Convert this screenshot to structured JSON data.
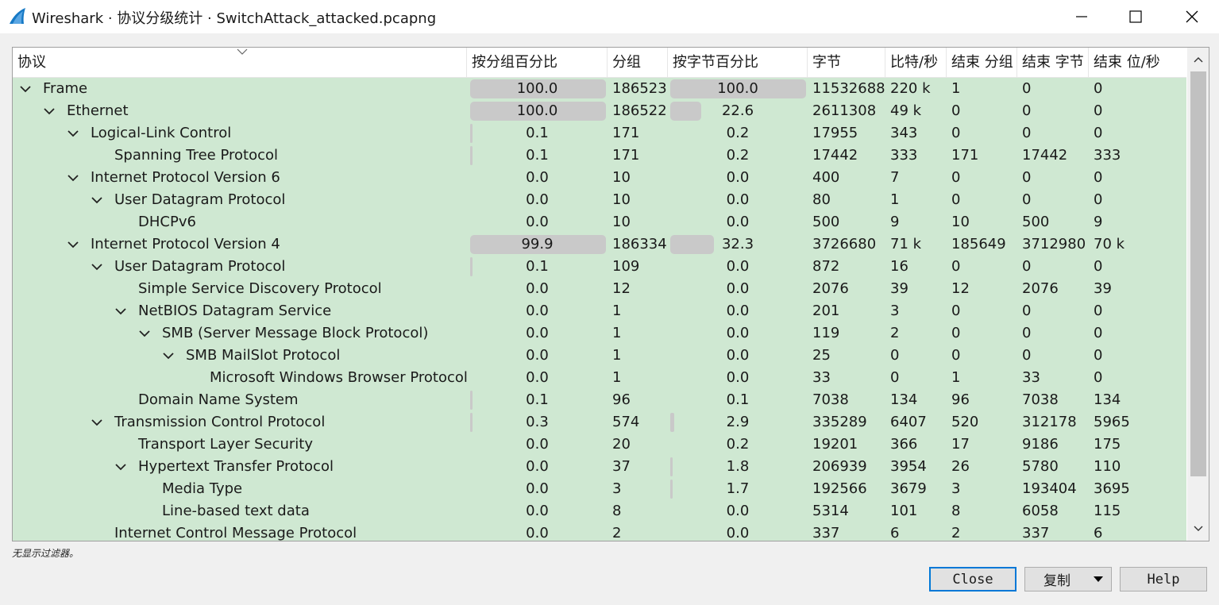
{
  "window": {
    "title": "Wireshark · 协议分级统计 · SwitchAttack_attacked.pcapng",
    "icon": "wireshark-fin-icon",
    "controls": [
      "minimize-icon",
      "maximize-icon",
      "close-icon"
    ]
  },
  "columns": [
    "协议",
    "按分组百分比",
    "分组",
    "按字节百分比",
    "字节",
    "比特/秒",
    "结束 分组",
    "结束 字节",
    "结束 位/秒"
  ],
  "rows": [
    {
      "protocol": "Frame",
      "level": 0,
      "expanded": true,
      "pkt_pct": "100.0",
      "packets": "186523",
      "byte_pct": "100.0",
      "bytes": "11532688",
      "bps": "220 k",
      "end_pkts": "1",
      "end_bytes": "0",
      "end_bps": "0",
      "pkt_fill": 1.0,
      "byte_fill": 1.0
    },
    {
      "protocol": "Ethernet",
      "level": 1,
      "expanded": true,
      "pkt_pct": "100.0",
      "packets": "186522",
      "byte_pct": "22.6",
      "bytes": "2611308",
      "bps": "49 k",
      "end_pkts": "0",
      "end_bytes": "0",
      "end_bps": "0",
      "pkt_fill": 1.0,
      "byte_fill": 0.226
    },
    {
      "protocol": "Logical-Link Control",
      "level": 2,
      "expanded": true,
      "pkt_pct": "0.1",
      "packets": "171",
      "byte_pct": "0.2",
      "bytes": "17955",
      "bps": "343",
      "end_pkts": "0",
      "end_bytes": "0",
      "end_bps": "0",
      "pkt_fill": 0.001,
      "byte_fill": 0.002
    },
    {
      "protocol": "Spanning Tree Protocol",
      "level": 3,
      "expanded": false,
      "pkt_pct": "0.1",
      "packets": "171",
      "byte_pct": "0.2",
      "bytes": "17442",
      "bps": "333",
      "end_pkts": "171",
      "end_bytes": "17442",
      "end_bps": "333",
      "pkt_fill": 0.001,
      "byte_fill": 0.002
    },
    {
      "protocol": "Internet Protocol Version 6",
      "level": 2,
      "expanded": true,
      "pkt_pct": "0.0",
      "packets": "10",
      "byte_pct": "0.0",
      "bytes": "400",
      "bps": "7",
      "end_pkts": "0",
      "end_bytes": "0",
      "end_bps": "0",
      "pkt_fill": 0,
      "byte_fill": 0
    },
    {
      "protocol": "User Datagram Protocol",
      "level": 3,
      "expanded": true,
      "pkt_pct": "0.0",
      "packets": "10",
      "byte_pct": "0.0",
      "bytes": "80",
      "bps": "1",
      "end_pkts": "0",
      "end_bytes": "0",
      "end_bps": "0",
      "pkt_fill": 0,
      "byte_fill": 0
    },
    {
      "protocol": "DHCPv6",
      "level": 4,
      "expanded": false,
      "pkt_pct": "0.0",
      "packets": "10",
      "byte_pct": "0.0",
      "bytes": "500",
      "bps": "9",
      "end_pkts": "10",
      "end_bytes": "500",
      "end_bps": "9",
      "pkt_fill": 0,
      "byte_fill": 0
    },
    {
      "protocol": "Internet Protocol Version 4",
      "level": 2,
      "expanded": true,
      "pkt_pct": "99.9",
      "packets": "186334",
      "byte_pct": "32.3",
      "bytes": "3726680",
      "bps": "71 k",
      "end_pkts": "185649",
      "end_bytes": "3712980",
      "end_bps": "70 k",
      "pkt_fill": 0.999,
      "byte_fill": 0.323
    },
    {
      "protocol": "User Datagram Protocol",
      "level": 3,
      "expanded": true,
      "pkt_pct": "0.1",
      "packets": "109",
      "byte_pct": "0.0",
      "bytes": "872",
      "bps": "16",
      "end_pkts": "0",
      "end_bytes": "0",
      "end_bps": "0",
      "pkt_fill": 0.001,
      "byte_fill": 0
    },
    {
      "protocol": "Simple Service Discovery Protocol",
      "level": 4,
      "expanded": false,
      "pkt_pct": "0.0",
      "packets": "12",
      "byte_pct": "0.0",
      "bytes": "2076",
      "bps": "39",
      "end_pkts": "12",
      "end_bytes": "2076",
      "end_bps": "39",
      "pkt_fill": 0,
      "byte_fill": 0
    },
    {
      "protocol": "NetBIOS Datagram Service",
      "level": 4,
      "expanded": true,
      "pkt_pct": "0.0",
      "packets": "1",
      "byte_pct": "0.0",
      "bytes": "201",
      "bps": "3",
      "end_pkts": "0",
      "end_bytes": "0",
      "end_bps": "0",
      "pkt_fill": 0,
      "byte_fill": 0
    },
    {
      "protocol": "SMB (Server Message Block Protocol)",
      "level": 5,
      "expanded": true,
      "pkt_pct": "0.0",
      "packets": "1",
      "byte_pct": "0.0",
      "bytes": "119",
      "bps": "2",
      "end_pkts": "0",
      "end_bytes": "0",
      "end_bps": "0",
      "pkt_fill": 0,
      "byte_fill": 0
    },
    {
      "protocol": "SMB MailSlot Protocol",
      "level": 6,
      "expanded": true,
      "pkt_pct": "0.0",
      "packets": "1",
      "byte_pct": "0.0",
      "bytes": "25",
      "bps": "0",
      "end_pkts": "0",
      "end_bytes": "0",
      "end_bps": "0",
      "pkt_fill": 0,
      "byte_fill": 0
    },
    {
      "protocol": "Microsoft Windows Browser Protocol",
      "level": 7,
      "expanded": false,
      "pkt_pct": "0.0",
      "packets": "1",
      "byte_pct": "0.0",
      "bytes": "33",
      "bps": "0",
      "end_pkts": "1",
      "end_bytes": "33",
      "end_bps": "0",
      "pkt_fill": 0,
      "byte_fill": 0
    },
    {
      "protocol": "Domain Name System",
      "level": 4,
      "expanded": false,
      "pkt_pct": "0.1",
      "packets": "96",
      "byte_pct": "0.1",
      "bytes": "7038",
      "bps": "134",
      "end_pkts": "96",
      "end_bytes": "7038",
      "end_bps": "134",
      "pkt_fill": 0.001,
      "byte_fill": 0.001
    },
    {
      "protocol": "Transmission Control Protocol",
      "level": 3,
      "expanded": true,
      "pkt_pct": "0.3",
      "packets": "574",
      "byte_pct": "2.9",
      "bytes": "335289",
      "bps": "6407",
      "end_pkts": "520",
      "end_bytes": "312178",
      "end_bps": "5965",
      "pkt_fill": 0.003,
      "byte_fill": 0.029
    },
    {
      "protocol": "Transport Layer Security",
      "level": 4,
      "expanded": false,
      "pkt_pct": "0.0",
      "packets": "20",
      "byte_pct": "0.2",
      "bytes": "19201",
      "bps": "366",
      "end_pkts": "17",
      "end_bytes": "9186",
      "end_bps": "175",
      "pkt_fill": 0,
      "byte_fill": 0.002
    },
    {
      "protocol": "Hypertext Transfer Protocol",
      "level": 4,
      "expanded": true,
      "pkt_pct": "0.0",
      "packets": "37",
      "byte_pct": "1.8",
      "bytes": "206939",
      "bps": "3954",
      "end_pkts": "26",
      "end_bytes": "5780",
      "end_bps": "110",
      "pkt_fill": 0,
      "byte_fill": 0.018
    },
    {
      "protocol": "Media Type",
      "level": 5,
      "expanded": false,
      "pkt_pct": "0.0",
      "packets": "3",
      "byte_pct": "1.7",
      "bytes": "192566",
      "bps": "3679",
      "end_pkts": "3",
      "end_bytes": "193404",
      "end_bps": "3695",
      "pkt_fill": 0,
      "byte_fill": 0.017
    },
    {
      "protocol": "Line-based text data",
      "level": 5,
      "expanded": false,
      "pkt_pct": "0.0",
      "packets": "8",
      "byte_pct": "0.0",
      "bytes": "5314",
      "bps": "101",
      "end_pkts": "8",
      "end_bytes": "6058",
      "end_bps": "115",
      "pkt_fill": 0,
      "byte_fill": 0
    },
    {
      "protocol": "Internet Control Message Protocol",
      "level": 3,
      "expanded": false,
      "pkt_pct": "0.0",
      "packets": "2",
      "byte_pct": "0.0",
      "bytes": "337",
      "bps": "6",
      "end_pkts": "2",
      "end_bytes": "337",
      "end_bps": "6",
      "pkt_fill": 0,
      "byte_fill": 0
    }
  ],
  "status": {
    "filter_text": "无显示过滤器。"
  },
  "buttons": {
    "close": "Close",
    "copy": "复制",
    "help": "Help"
  },
  "colors": {
    "row_bg": "#cfe8d2",
    "bar": "#c9c9c9",
    "accent": "#0078d7"
  }
}
